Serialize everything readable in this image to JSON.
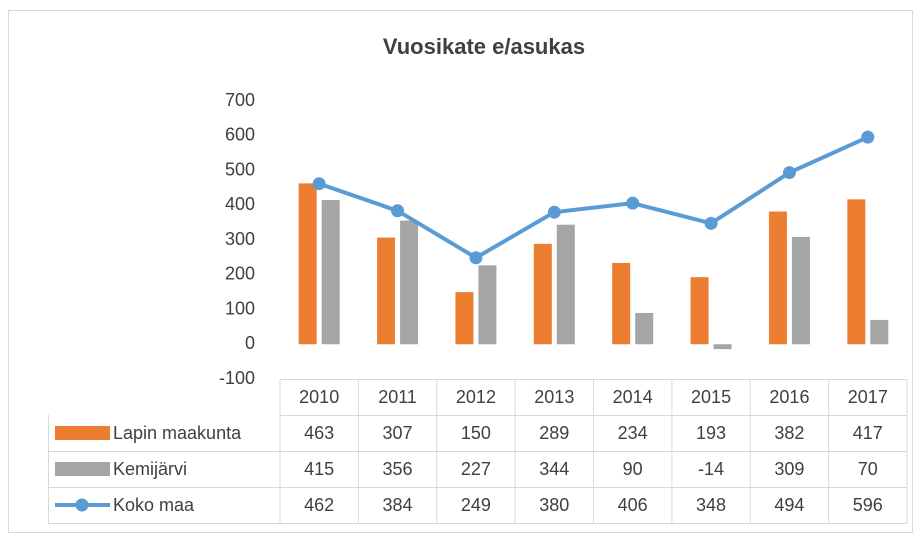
{
  "chart_data": {
    "type": "bar",
    "title": "Vuosikate e/asukas",
    "categories": [
      "2010",
      "2011",
      "2012",
      "2013",
      "2014",
      "2015",
      "2016",
      "2017"
    ],
    "series": [
      {
        "name": "Lapin maakunta",
        "color": "#ed7d31",
        "type": "bar",
        "values": [
          463,
          307,
          150,
          289,
          234,
          193,
          382,
          417
        ]
      },
      {
        "name": "Kemijärvi",
        "color": "#a5a5a5",
        "type": "bar",
        "values": [
          415,
          356,
          227,
          344,
          90,
          -14,
          309,
          70
        ]
      },
      {
        "name": "Koko maa",
        "color": "#5b9bd5",
        "type": "line",
        "values": [
          462,
          384,
          249,
          380,
          406,
          348,
          494,
          596
        ]
      }
    ],
    "ylim": [
      -100,
      700
    ],
    "yticks": [
      -100,
      0,
      100,
      200,
      300,
      400,
      500,
      600,
      700
    ],
    "grid": false,
    "data_table": true
  }
}
